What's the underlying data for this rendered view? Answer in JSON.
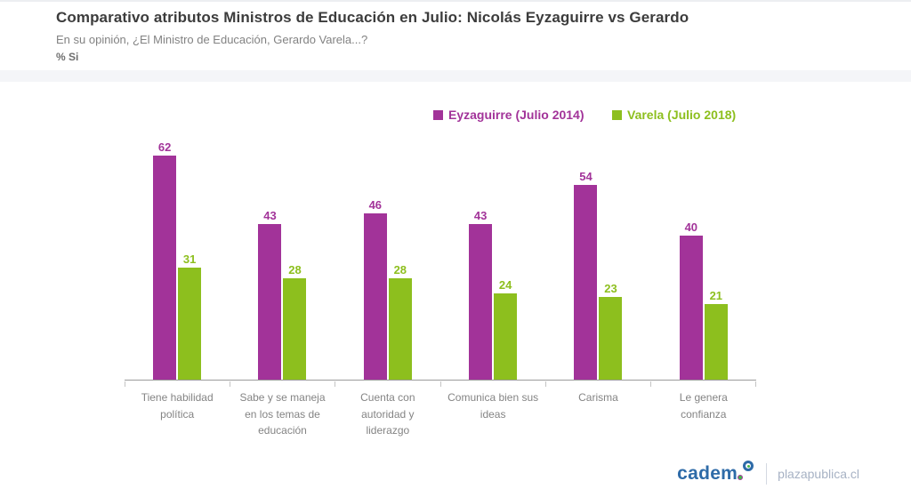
{
  "header": {
    "title": "Comparativo atributos Ministros de Educación en Julio: Nicolás Eyzaguirre vs Gerardo",
    "subtitle": "En su opinión, ¿El Ministro de Educación, Gerardo Varela...?",
    "metric_label": "% Si"
  },
  "chart_data": {
    "type": "bar",
    "categories": [
      "Tiene habilidad política",
      "Sabe y se maneja en los temas de educación",
      "Cuenta con autoridad y liderazgo",
      "Comunica bien sus ideas",
      "Carisma",
      "Le genera confianza"
    ],
    "series": [
      {
        "name": "Eyzaguirre (Julio 2014)",
        "color": "#A23399",
        "values": [
          62,
          43,
          46,
          43,
          54,
          40
        ]
      },
      {
        "name": "Varela (Julio 2018)",
        "color": "#8DBF1E",
        "values": [
          31,
          28,
          28,
          24,
          23,
          21
        ]
      }
    ],
    "ylim": [
      0,
      68
    ],
    "value_labels": true,
    "legend_position": "top-center",
    "grid": false,
    "xlabel": "",
    "ylabel": ""
  },
  "footer": {
    "brand": "cadem",
    "brand_color": "#2e6ba8",
    "site": "plazapublica.cl"
  }
}
